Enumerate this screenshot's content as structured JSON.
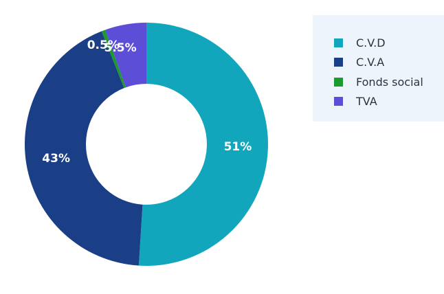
{
  "chart_data": {
    "type": "pie",
    "donut": true,
    "title": "",
    "slices": [
      {
        "label": "C.V.D",
        "value": 51,
        "display": "51%",
        "color": "#12a6bd"
      },
      {
        "label": "C.V.A",
        "value": 43,
        "display": "43%",
        "color": "#1b3f87"
      },
      {
        "label": "Fonds social",
        "value": 0.5,
        "display": "0.5%",
        "color": "#1d9a2f"
      },
      {
        "label": "TVA",
        "value": 5.5,
        "display": "5.5%",
        "color": "#5d4ed8"
      }
    ],
    "legend": {
      "placement": "top-right",
      "items": [
        "C.V.D",
        "C.V.A",
        "Fonds social",
        "TVA"
      ]
    }
  }
}
